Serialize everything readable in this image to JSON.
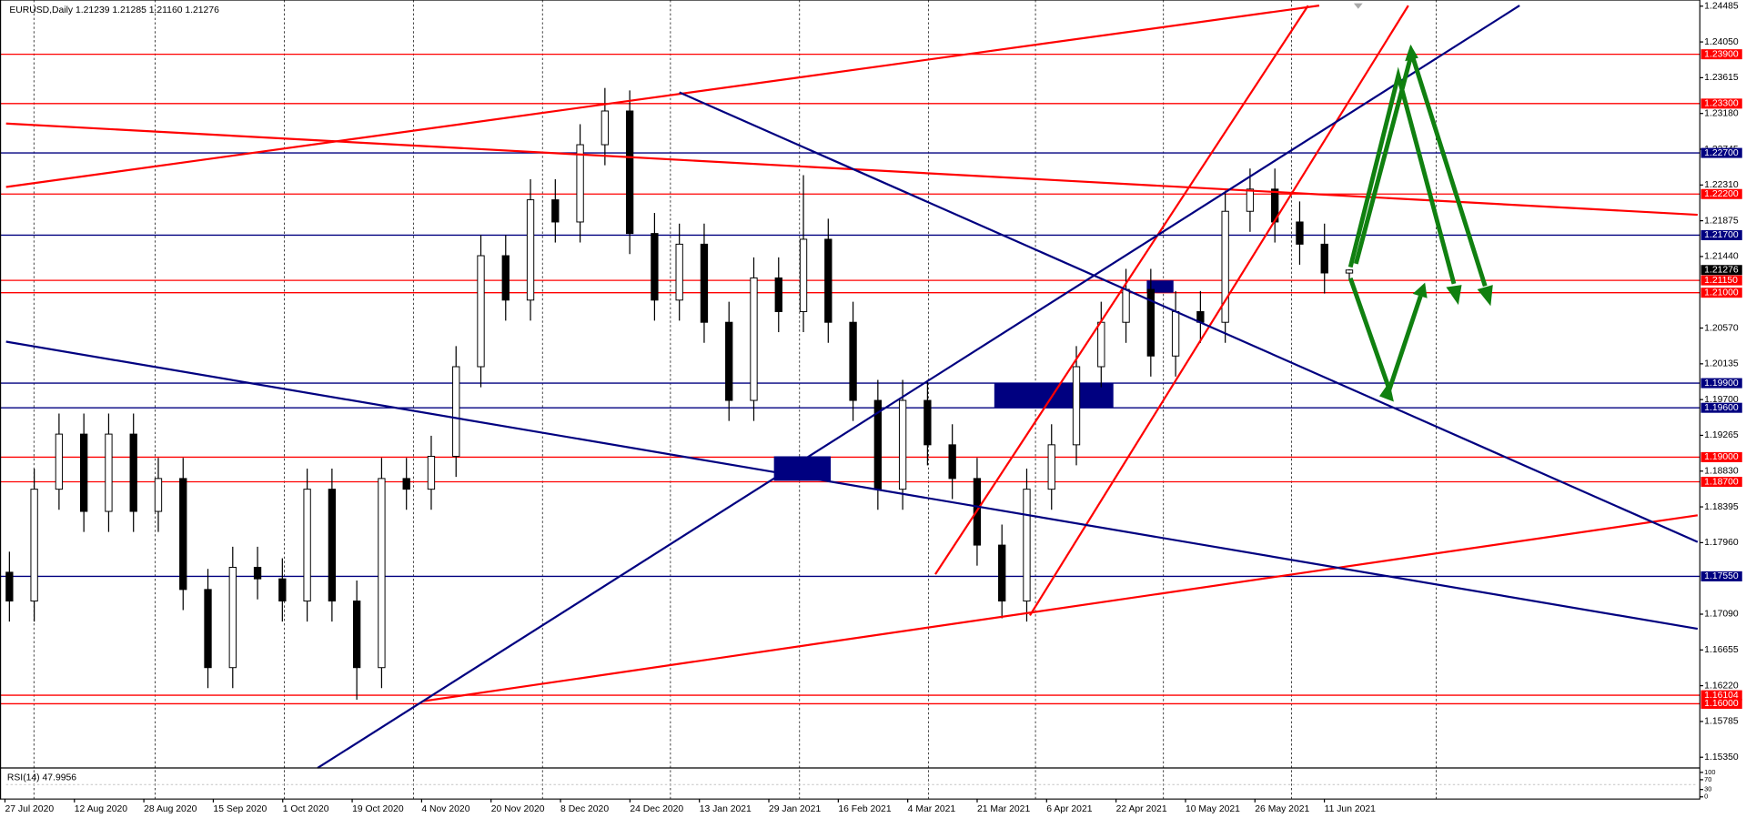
{
  "chart_data": {
    "type": "candlestick",
    "title": "EURUSD,Daily  1.21239 1.21285 1.21160 1.21276",
    "ylim": [
      1.1522,
      1.2456
    ],
    "yticks": [
      {
        "value": 1.24485,
        "label": "1.24485"
      },
      {
        "value": 1.2405,
        "label": "1.24050"
      },
      {
        "value": 1.23615,
        "label": "1.23615"
      },
      {
        "value": 1.2318,
        "label": "1.23180"
      },
      {
        "value": 1.22745,
        "label": "1.22745"
      },
      {
        "value": 1.2231,
        "label": "1.22310"
      },
      {
        "value": 1.21875,
        "label": "1.21875"
      },
      {
        "value": 1.2144,
        "label": "1.21440"
      },
      {
        "value": 1.2057,
        "label": "1.20570"
      },
      {
        "value": 1.20135,
        "label": "1.20135"
      },
      {
        "value": 1.197,
        "label": "1.19700"
      },
      {
        "value": 1.19265,
        "label": "1.19265"
      },
      {
        "value": 1.1883,
        "label": "1.18830"
      },
      {
        "value": 1.18395,
        "label": "1.18395"
      },
      {
        "value": 1.1796,
        "label": "1.17960"
      },
      {
        "value": 1.1709,
        "label": "1.17090"
      },
      {
        "value": 1.16655,
        "label": "1.16655"
      },
      {
        "value": 1.1622,
        "label": "1.16220"
      },
      {
        "value": 1.15785,
        "label": "1.15785"
      },
      {
        "value": 1.1535,
        "label": "1.15350"
      }
    ],
    "open": [
      1.176,
      1.1725,
      1.1861,
      1.1928,
      1.1834,
      1.1928,
      1.1834,
      1.1874,
      1.1739,
      1.1644,
      1.1766,
      1.1752,
      1.1725,
      1.1861,
      1.1725,
      1.1644,
      1.1874,
      1.1861,
      1.1901,
      1.201,
      1.2145,
      1.2091,
      1.2213,
      1.2186,
      1.228,
      1.2321,
      1.2172,
      1.2091,
      1.2159,
      1.2064,
      1.1969,
      1.2118,
      1.2077,
      1.2165,
      1.2064,
      1.1969,
      1.1861,
      1.1969,
      1.1915,
      1.1874,
      1.1793,
      1.1725,
      1.1861,
      1.1915,
      1.201,
      1.2064,
      1.2104,
      1.2023,
      1.2077,
      1.2064,
      1.2199,
      1.2226,
      1.2186,
      1.2159,
      1.21239
    ],
    "high": [
      1.1785,
      1.1886,
      1.1953,
      1.1953,
      1.1953,
      1.1953,
      1.1899,
      1.1899,
      1.1764,
      1.1791,
      1.1791,
      1.1777,
      1.1886,
      1.1886,
      1.175,
      1.1899,
      1.1899,
      1.1926,
      1.2035,
      1.217,
      1.217,
      1.2238,
      1.2238,
      1.2305,
      1.2349,
      1.2346,
      1.2197,
      1.2184,
      1.2184,
      1.2089,
      1.2143,
      1.2143,
      1.2243,
      1.219,
      1.2089,
      1.1994,
      1.1994,
      1.1994,
      1.194,
      1.1899,
      1.1818,
      1.1886,
      1.194,
      1.2035,
      1.2089,
      1.2129,
      1.2129,
      1.2102,
      1.2102,
      1.2224,
      1.2251,
      1.2251,
      1.2211,
      1.2184,
      1.21285
    ],
    "low": [
      1.17,
      1.17,
      1.1836,
      1.1809,
      1.1809,
      1.1809,
      1.1809,
      1.1714,
      1.1619,
      1.1619,
      1.1727,
      1.17,
      1.17,
      1.17,
      1.1605,
      1.1619,
      1.1836,
      1.1836,
      1.1876,
      1.1985,
      1.2066,
      1.2066,
      1.2161,
      1.2161,
      1.2255,
      1.2147,
      1.2066,
      1.2066,
      1.2039,
      1.1944,
      1.1944,
      1.2052,
      1.2052,
      1.2039,
      1.1944,
      1.1836,
      1.1836,
      1.189,
      1.1849,
      1.1768,
      1.1704,
      1.17,
      1.1836,
      1.189,
      1.1985,
      1.2039,
      1.1998,
      1.1998,
      1.2039,
      1.2039,
      1.2174,
      1.2161,
      1.2134,
      1.2099,
      1.2116
    ],
    "close": [
      1.1725,
      1.1861,
      1.1928,
      1.1834,
      1.1928,
      1.1834,
      1.1874,
      1.1739,
      1.1644,
      1.1766,
      1.1752,
      1.1725,
      1.1861,
      1.1725,
      1.1644,
      1.1874,
      1.1861,
      1.1901,
      1.201,
      1.2145,
      1.2091,
      1.2213,
      1.2186,
      1.228,
      1.2321,
      1.2172,
      1.2091,
      1.2159,
      1.2064,
      1.1969,
      1.2118,
      1.2077,
      1.2165,
      1.2064,
      1.1969,
      1.1861,
      1.1969,
      1.1915,
      1.1874,
      1.1793,
      1.1725,
      1.1861,
      1.1915,
      1.201,
      1.2064,
      1.2104,
      1.2023,
      1.2077,
      1.2064,
      1.2199,
      1.2226,
      1.2186,
      1.2159,
      1.2124,
      1.21276
    ],
    "levels": [
      {
        "value": 1.239,
        "label": "1.23900",
        "color": "#ff0000"
      },
      {
        "value": 1.233,
        "label": "1.23300",
        "color": "#ff0000"
      },
      {
        "value": 1.227,
        "label": "1.22700",
        "color": "#000080"
      },
      {
        "value": 1.222,
        "label": "1.22200",
        "color": "#ff0000"
      },
      {
        "value": 1.217,
        "label": "1.21700",
        "color": "#000080"
      },
      {
        "value": 1.2115,
        "label": "1.21150",
        "color": "#ff0000"
      },
      {
        "value": 1.21,
        "label": "1.21000",
        "color": "#ff0000"
      },
      {
        "value": 1.199,
        "label": "1.19900",
        "color": "#000080"
      },
      {
        "value": 1.196,
        "label": "1.19600",
        "color": "#000080"
      },
      {
        "value": 1.19,
        "label": "1.19000",
        "color": "#ff0000"
      },
      {
        "value": 1.187,
        "label": "1.18700",
        "color": "#ff0000"
      },
      {
        "value": 1.1755,
        "label": "1.17550",
        "color": "#000080"
      },
      {
        "value": 1.16104,
        "label": "1.16104",
        "color": "#ff0000"
      },
      {
        "value": 1.16,
        "label": "1.16000",
        "color": "#ff0000"
      }
    ],
    "current_price": {
      "value": 1.21276,
      "label": "1.21276"
    },
    "xlabels": [
      "27 Jul 2020",
      "12 Aug 2020",
      "28 Aug 2020",
      "15 Sep 2020",
      "1 Oct 2020",
      "19 Oct 2020",
      "4 Nov 2020",
      "20 Nov 2020",
      "8 Dec 2020",
      "24 Dec 2020",
      "13 Jan 2021",
      "29 Jan 2021",
      "16 Feb 2021",
      "4 Mar 2021",
      "21 Mar 2021",
      "6 Apr 2021",
      "22 Apr 2021",
      "10 May 2021",
      "26 May 2021",
      "11 Jun 2021"
    ],
    "rsi": {
      "label": "RSI(14) 47.9956",
      "ylim": [
        0,
        100
      ],
      "yticks": [
        100,
        70,
        30,
        0
      ]
    }
  }
}
